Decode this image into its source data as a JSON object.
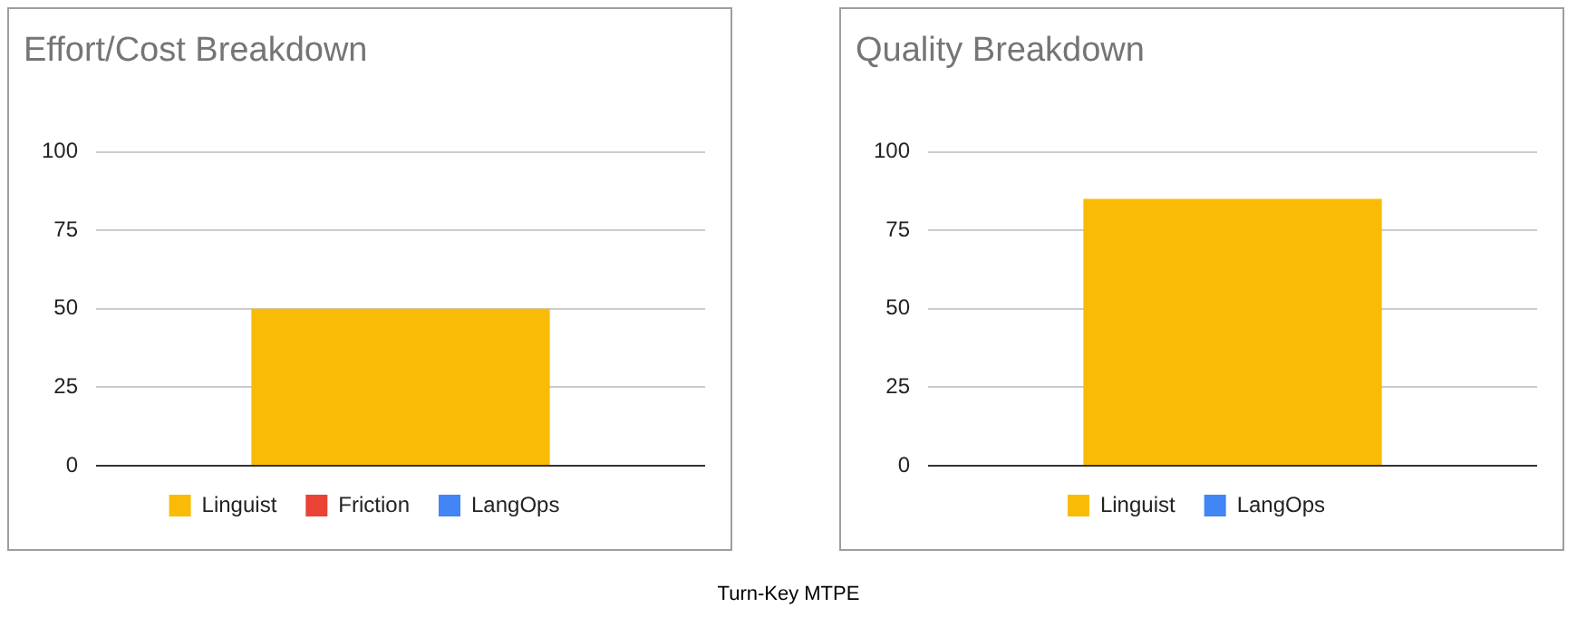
{
  "chart_data": [
    {
      "type": "bar",
      "title": "Effort/Cost Breakdown",
      "categories": [
        null
      ],
      "stacked": true,
      "series": [
        {
          "name": "Linguist",
          "color": "#f9bb06",
          "values": [
            50
          ]
        },
        {
          "name": "Friction",
          "color": "#ea4335",
          "values": [
            0
          ]
        },
        {
          "name": "LangOps",
          "color": "#4285f4",
          "values": [
            0
          ]
        }
      ],
      "ylim": [
        0,
        100
      ],
      "yticks": [
        0,
        25,
        50,
        75,
        100
      ],
      "grid": "y",
      "legend": "bottom",
      "tick_labels": "y",
      "annotations": [
        "Turn-Key MTPE"
      ]
    },
    {
      "type": "bar",
      "title": "Quality Breakdown",
      "categories": [
        null
      ],
      "stacked": true,
      "series": [
        {
          "name": "Linguist",
          "color": "#f9bb06",
          "values": [
            85
          ]
        },
        {
          "name": "LangOps",
          "color": "#4285f4",
          "values": [
            0
          ]
        }
      ],
      "ylim": [
        0,
        100
      ],
      "yticks": [
        0,
        25,
        50,
        75,
        100
      ],
      "grid": "y",
      "legend": "bottom",
      "tick_labels": "y"
    }
  ]
}
